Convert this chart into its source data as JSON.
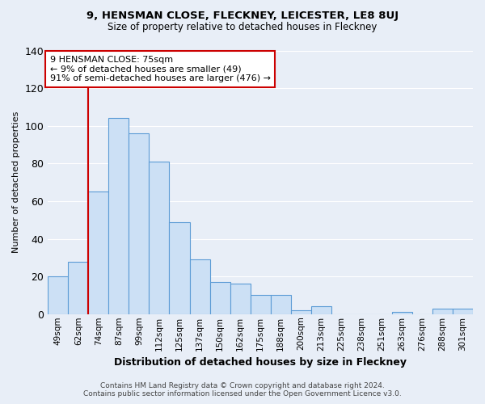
{
  "title": "9, HENSMAN CLOSE, FLECKNEY, LEICESTER, LE8 8UJ",
  "subtitle": "Size of property relative to detached houses in Fleckney",
  "xlabel": "Distribution of detached houses by size in Fleckney",
  "ylabel": "Number of detached properties",
  "footer_line1": "Contains HM Land Registry data © Crown copyright and database right 2024.",
  "footer_line2": "Contains public sector information licensed under the Open Government Licence v3.0.",
  "categories": [
    "49sqm",
    "62sqm",
    "74sqm",
    "87sqm",
    "99sqm",
    "112sqm",
    "125sqm",
    "137sqm",
    "150sqm",
    "162sqm",
    "175sqm",
    "188sqm",
    "200sqm",
    "213sqm",
    "225sqm",
    "238sqm",
    "251sqm",
    "263sqm",
    "276sqm",
    "288sqm",
    "301sqm"
  ],
  "values": [
    20,
    28,
    65,
    104,
    96,
    81,
    49,
    29,
    17,
    16,
    10,
    10,
    2,
    4,
    0,
    0,
    0,
    1,
    0,
    3,
    3
  ],
  "bar_color": "#cce0f5",
  "bar_edge_color": "#5b9bd5",
  "vline_x": 1.5,
  "vline_color": "#cc0000",
  "ann_line1": "9 HENSMAN CLOSE: 75sqm",
  "ann_line2": "← 9% of detached houses are smaller (49)",
  "ann_line3": "91% of semi-detached houses are larger (476) →",
  "annotation_box_color": "white",
  "annotation_box_edge_color": "#cc0000",
  "ylim": [
    0,
    140
  ],
  "yticks": [
    0,
    20,
    40,
    60,
    80,
    100,
    120,
    140
  ],
  "background_color": "#e8eef7",
  "plot_background": "#e8eef7",
  "grid_color": "white"
}
